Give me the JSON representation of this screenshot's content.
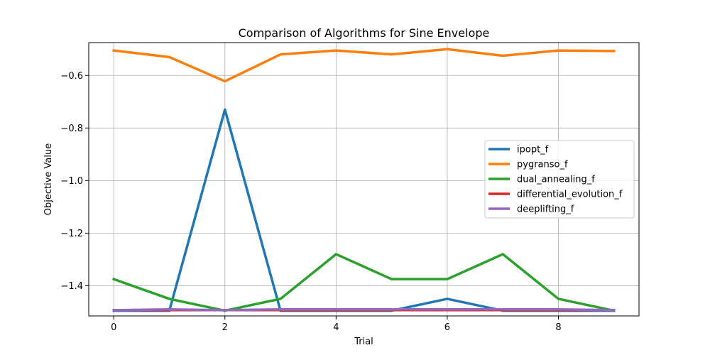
{
  "chart_data": {
    "type": "line",
    "title": "Comparison of Algorithms for Sine Envelope",
    "xlabel": "Trial",
    "ylabel": "Objective Value",
    "x": [
      0,
      1,
      2,
      3,
      4,
      5,
      6,
      7,
      8,
      9
    ],
    "xlim": [
      -0.45,
      9.45
    ],
    "ylim": [
      -1.515,
      -0.475
    ],
    "xticks": [
      0,
      2,
      4,
      6,
      8
    ],
    "yticks": [
      -1.4,
      -1.2,
      -1.0,
      -0.8,
      -0.6
    ],
    "xtick_labels": [
      "0",
      "2",
      "4",
      "6",
      "8"
    ],
    "ytick_labels": [
      "−1.4",
      "−1.2",
      "−1.0",
      "−0.8",
      "−0.6"
    ],
    "grid": true,
    "legend_position": "center-right",
    "series": [
      {
        "name": "ipopt_f",
        "color": "#1f77b4",
        "values": [
          -1.495,
          -1.495,
          -0.73,
          -1.495,
          -1.495,
          -1.495,
          -1.45,
          -1.495,
          -1.495,
          -1.495
        ]
      },
      {
        "name": "pygranso_f",
        "color": "#ff7f0e",
        "values": [
          -0.505,
          -0.53,
          -0.622,
          -0.52,
          -0.505,
          -0.52,
          -0.5,
          -0.525,
          -0.505,
          -0.507
        ]
      },
      {
        "name": "dual_annealing_f",
        "color": "#2ca02c",
        "values": [
          -1.375,
          -1.45,
          -1.495,
          -1.45,
          -1.28,
          -1.375,
          -1.375,
          -1.28,
          -1.45,
          -1.495
        ]
      },
      {
        "name": "differential_evolution_f",
        "color": "#d62728",
        "values": [
          -1.4928,
          -1.4928,
          -1.4928,
          -1.4928,
          -1.4928,
          -1.4928,
          -1.4928,
          -1.4928,
          -1.4928,
          -1.4928
        ]
      },
      {
        "name": "deeplifting_f",
        "color": "#9467bd",
        "values": [
          -1.493,
          -1.49,
          -1.493,
          -1.49,
          -1.49,
          -1.49,
          -1.49,
          -1.49,
          -1.49,
          -1.493
        ]
      }
    ]
  }
}
